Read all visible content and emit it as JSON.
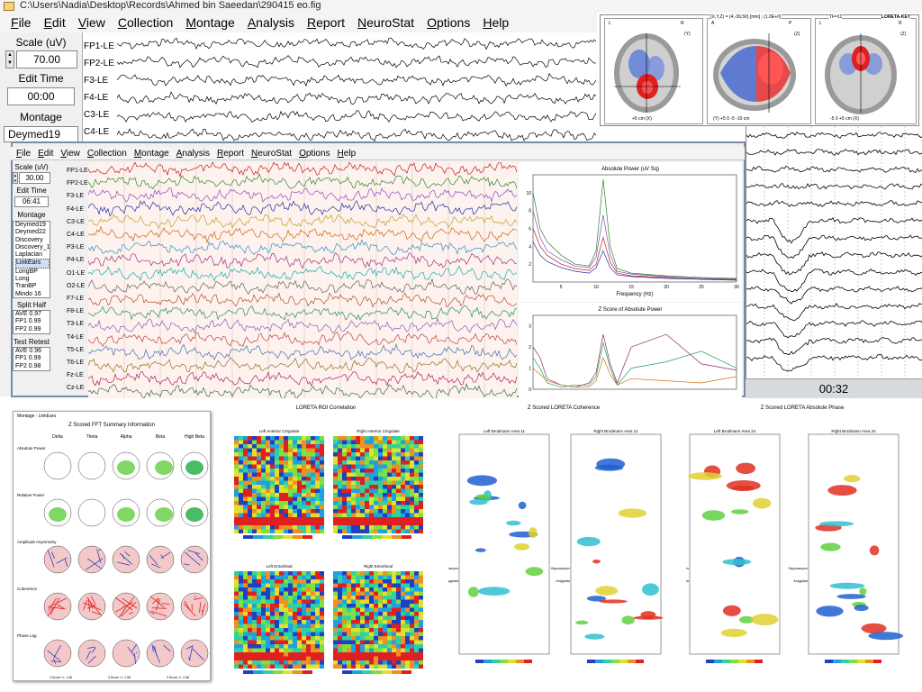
{
  "window": {
    "title": "C:\\Users\\Nadia\\Desktop\\Records\\Ahmed bin Saeedan\\290415 eo.fig"
  },
  "menu": [
    "File",
    "Edit",
    "View",
    "Collection",
    "Montage",
    "Analysis",
    "Report",
    "NeuroStat",
    "Options",
    "Help"
  ],
  "panel1": {
    "scale_label": "Scale (uV)",
    "scale_value": "70.00",
    "edit_time_label": "Edit Time",
    "edit_time_value": "00:00",
    "montage_label": "Montage",
    "montage_value": "Deymed19"
  },
  "channels1": [
    "FP1-LE",
    "FP2-LE",
    "F3-LE",
    "F4-LE",
    "C3-LE",
    "C4-LE"
  ],
  "brain": {
    "header_left": "(X,Y,Z) = (4,-39,50) [mm] ; (1.0E+0)",
    "header_mid": "TF=11",
    "header_right": "LORETA-KEY",
    "views": [
      {
        "name": "axial",
        "orient_top": "L",
        "orient_right": "R",
        "axis_note": "(Y)",
        "bottom_note": "+5 cm (X)"
      },
      {
        "name": "sagittal",
        "orient_top": "A",
        "orient_right": "P",
        "axis_note": "(Z)",
        "bottom_note": "(Y) +5 0 -5 -10 cm"
      },
      {
        "name": "coronal",
        "orient_top": "L",
        "orient_right": "R",
        "axis_note": "(Z)",
        "bottom_note": "-5 0 +5 cm (X)"
      }
    ]
  },
  "time_readout": "00:32",
  "panel2": {
    "scale_label": "Scale (uV)",
    "scale_value": "30.00",
    "edit_time_label": "Edit Time",
    "edit_time_value": "06:41",
    "montage_label": "Montage",
    "montages": [
      "Deymed19",
      "Deymed22",
      "Discovery",
      "Discovery_19",
      "Laplacian",
      "LinkEars",
      "LongBP",
      "Long TranBP",
      "Mindo 16",
      "Mindo32"
    ],
    "montage_selected": "LinkEars",
    "split_half_label": "Split Half",
    "split_half": [
      "AVE 0.97",
      "FP1 0.99",
      "FP2 0.99"
    ],
    "test_retest_label": "Test Retest",
    "test_retest": [
      "AVE 0.96",
      "FP1 0.99",
      "FP2 0.98"
    ]
  },
  "channels2": [
    "FP1-LE",
    "FP2-LE",
    "F3-LE",
    "F4-LE",
    "C3-LE",
    "C4-LE",
    "P3-LE",
    "P4-LE",
    "O1-LE",
    "O2-LE",
    "F7-LE",
    "F8-LE",
    "T3-LE",
    "T4-LE",
    "T5-LE",
    "T6-LE",
    "Fz-LE",
    "Cz-LE"
  ],
  "spectrum": {
    "title1": "Absolute Power (uV Sq)",
    "xlabel": "Frequency (Hz)",
    "xticks": [
      "5",
      "10",
      "15",
      "20",
      "25",
      "30"
    ],
    "yticks1": [
      "10",
      "8",
      "6",
      "4",
      "2"
    ],
    "title2": "Z Score of Absolute Power",
    "yticks2": [
      "3",
      "2",
      "1",
      "0"
    ]
  },
  "chart_data": [
    {
      "type": "line",
      "title": "Absolute Power (uV Sq)",
      "xlabel": "Frequency (Hz)",
      "ylabel": "",
      "xlim": [
        1,
        30
      ],
      "ylim": [
        0,
        12
      ],
      "x": [
        1,
        2,
        3,
        5,
        7,
        9,
        10,
        11,
        12,
        13,
        15,
        20,
        25,
        30
      ],
      "series": [
        {
          "values": [
            10,
            6,
            4.5,
            3,
            2,
            1.8,
            3.5,
            11.5,
            4,
            1.5,
            1,
            0.7,
            0.5,
            0.4
          ]
        },
        {
          "values": [
            8,
            5,
            3.5,
            2.5,
            1.8,
            1.6,
            2.8,
            7.5,
            3,
            1.2,
            0.9,
            0.6,
            0.4,
            0.3
          ]
        },
        {
          "values": [
            6,
            4,
            3,
            2,
            1.5,
            1.3,
            2,
            5,
            2.2,
            1,
            0.7,
            0.5,
            0.3,
            0.3
          ]
        },
        {
          "values": [
            4.5,
            3,
            2.3,
            1.6,
            1.2,
            1,
            1.6,
            3.5,
            1.6,
            0.8,
            0.6,
            0.4,
            0.3,
            0.2
          ]
        }
      ]
    },
    {
      "type": "line",
      "title": "Z Score of Absolute Power",
      "xlabel": "",
      "ylabel": "",
      "xlim": [
        1,
        30
      ],
      "ylim": [
        0,
        3.5
      ],
      "x": [
        1,
        2,
        3,
        5,
        7,
        9,
        10,
        11,
        12,
        13,
        15,
        20,
        25,
        30
      ],
      "series": [
        {
          "values": [
            2,
            1.5,
            0.5,
            0.2,
            0.1,
            0.3,
            0.8,
            2.6,
            1.2,
            0.3,
            2,
            2.6,
            1.2,
            0.9
          ]
        },
        {
          "values": [
            1.5,
            1,
            0.3,
            0.1,
            0.2,
            0.2,
            0.6,
            2.2,
            1,
            0.2,
            1,
            1.3,
            1.8,
            1
          ]
        },
        {
          "values": [
            1,
            0.7,
            0.4,
            0.2,
            0.1,
            0.1,
            0.4,
            1.5,
            0.7,
            0.2,
            0.5,
            0.4,
            0.3,
            0.6
          ]
        }
      ]
    }
  ],
  "fft_summary": {
    "header": "Montage : LinkEars",
    "title": "Z Scored FFT Summary Information",
    "bands": [
      "Delta",
      "Theta",
      "Alpha",
      "Beta",
      "High Beta"
    ],
    "rows": [
      "Absolute Power",
      "Relative Power",
      "Amplitude Asymmetry",
      "Coherence",
      "Phase Lag"
    ],
    "footer": [
      "3 Score +/- 1.96",
      "3 Score +/- 2.58",
      "3 Score +/- 2.58"
    ]
  },
  "roi": {
    "title": "LORETA ROI Correlation",
    "panels": [
      "Left Anterior Cingulate",
      "Right Anterior Cingulate",
      "Left Entorhinal",
      "Right Entorhinal"
    ]
  },
  "coherence": {
    "title": "Z Scored LORETA Coherence",
    "panels": [
      "Left Brodmann Area 11",
      "Right Brodmann Area 11"
    ],
    "labels": [
      "Hippocampus",
      "Amygdala"
    ]
  },
  "phase": {
    "title": "Z Scored LORETA Absolute Phase",
    "panels": [
      "Left Brodmann Area 24",
      "Right Brodmann Area 24"
    ],
    "labels": [
      "Hippocampus",
      "Amygdala"
    ]
  },
  "colors": {
    "accent": "#7a8aa8",
    "eeg_bg": "#fdf2ee",
    "menu_bg": "#f4f4f4"
  }
}
